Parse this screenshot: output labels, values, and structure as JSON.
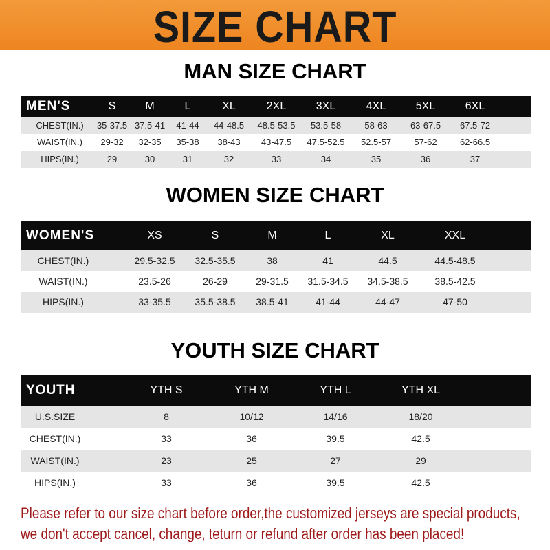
{
  "banner": {
    "title": "SIZE CHART",
    "color": "#ef8a24"
  },
  "men": {
    "title": "MAN SIZE CHART",
    "header": [
      "MEN'S",
      "S",
      "M",
      "L",
      "XL",
      "2XL",
      "3XL",
      "4XL",
      "5XL",
      "6XL"
    ],
    "rows": [
      [
        "CHEST(IN.)",
        "35-37.5",
        "37.5-41",
        "41-44",
        "44-48.5",
        "48.5-53.5",
        "53.5-58",
        "58-63",
        "63-67.5",
        "67.5-72"
      ],
      [
        "WAIST(IN.)",
        "29-32",
        "32-35",
        "35-38",
        "38-43",
        "43-47.5",
        "47.5-52.5",
        "52.5-57",
        "57-62",
        "62-66.5"
      ],
      [
        "HIPS(IN.)",
        "29",
        "30",
        "31",
        "32",
        "33",
        "34",
        "35",
        "36",
        "37"
      ]
    ]
  },
  "women": {
    "title": "WOMEN SIZE CHART",
    "header": [
      "WOMEN'S",
      "XS",
      "S",
      "M",
      "L",
      "XL",
      "XXL"
    ],
    "rows": [
      [
        "CHEST(IN.)",
        "29.5-32.5",
        "32.5-35.5",
        "38",
        "41",
        "44.5",
        "44.5-48.5"
      ],
      [
        "WAIST(IN.)",
        "23.5-26",
        "26-29",
        "29-31.5",
        "31.5-34.5",
        "34.5-38.5",
        "38.5-42.5"
      ],
      [
        "HIPS(IN.)",
        "33-35.5",
        "35.5-38.5",
        "38.5-41",
        "41-44",
        "44-47",
        "47-50"
      ]
    ]
  },
  "youth": {
    "title": "YOUTH SIZE CHART",
    "header": [
      "YOUTH",
      "YTH S",
      "YTH M",
      "YTH L",
      "YTH XL"
    ],
    "rows": [
      [
        "U.S.SIZE",
        "8",
        "10/12",
        "14/16",
        "18/20"
      ],
      [
        "CHEST(IN.)",
        "33",
        "36",
        "39.5",
        "42.5"
      ],
      [
        "WAIST(IN.)",
        "23",
        "25",
        "27",
        "29"
      ],
      [
        "HIPS(IN.)",
        "33",
        "36",
        "39.5",
        "42.5"
      ]
    ]
  },
  "note": {
    "line1": "Please refer to our size chart before order,the customized jerseys are special products,",
    "line2": "we don't accept cancel, change, teturn or refund after order has been placed!",
    "color": "#9e1b1b"
  }
}
